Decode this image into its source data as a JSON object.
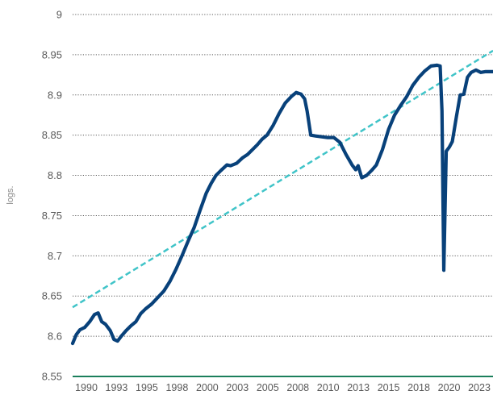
{
  "chart_data": {
    "type": "line",
    "ylabel": "logs.",
    "ylim": [
      8.55,
      9.0
    ],
    "xlim": [
      1990,
      2024.6
    ],
    "grid": true,
    "y_ticks": [
      "9",
      "8.95",
      "8.9",
      "8.85",
      "8.8",
      "8.75",
      "8.7",
      "8.65",
      "8.6",
      "8.55"
    ],
    "x_ticks": [
      "1990",
      "1993",
      "1995",
      "1998",
      "2000",
      "2003",
      "2005",
      "2008",
      "2010",
      "2013",
      "2015",
      "2018",
      "2020",
      "2023"
    ],
    "series": [
      {
        "color": "#08417a",
        "style": "solid",
        "x": [
          1990.0,
          1990.3,
          1990.6,
          1991.0,
          1991.4,
          1991.8,
          1992.1,
          1992.4,
          1992.7,
          1993.1,
          1993.4,
          1993.7,
          1994.0,
          1994.4,
          1994.8,
          1995.2,
          1995.6,
          1996.0,
          1996.5,
          1997.0,
          1997.5,
          1998.0,
          1998.5,
          1999.0,
          1999.5,
          2000.0,
          2000.5,
          2001.0,
          2001.4,
          2001.8,
          2002.2,
          2002.7,
          2003.0,
          2003.5,
          2004.0,
          2004.4,
          2004.8,
          2005.2,
          2005.6,
          2006.0,
          2006.5,
          2007.0,
          2007.5,
          2008.0,
          2008.4,
          2008.8,
          2009.1,
          2009.3,
          2009.6,
          2010.0,
          2010.5,
          2011.0,
          2011.5,
          2012.0,
          2012.5,
          2013.0,
          2013.3,
          2013.5,
          2013.8,
          2014.2,
          2014.6,
          2015.0,
          2015.5,
          2016.0,
          2016.5,
          2017.0,
          2017.5,
          2018.0,
          2018.5,
          2019.0,
          2019.5,
          2020.0,
          2020.25,
          2020.4,
          2020.55,
          2020.75,
          2021.0,
          2021.25,
          2021.6,
          2021.9,
          2022.2,
          2022.5,
          2022.8,
          2023.2,
          2023.6,
          2024.0,
          2024.6
        ],
        "values": [
          8.591,
          8.602,
          8.608,
          8.611,
          8.618,
          8.627,
          8.629,
          8.618,
          8.615,
          8.607,
          8.596,
          8.594,
          8.6,
          8.607,
          8.613,
          8.618,
          8.628,
          8.634,
          8.64,
          8.648,
          8.656,
          8.668,
          8.683,
          8.7,
          8.718,
          8.735,
          8.757,
          8.778,
          8.79,
          8.8,
          8.806,
          8.813,
          8.812,
          8.815,
          8.822,
          8.826,
          8.832,
          8.838,
          8.845,
          8.85,
          8.862,
          8.877,
          8.89,
          8.898,
          8.903,
          8.901,
          8.895,
          8.88,
          8.85,
          8.849,
          8.848,
          8.847,
          8.847,
          8.841,
          8.826,
          8.813,
          8.807,
          8.812,
          8.797,
          8.8,
          8.806,
          8.813,
          8.832,
          8.857,
          8.875,
          8.887,
          8.898,
          8.912,
          8.922,
          8.93,
          8.936,
          8.937,
          8.936,
          8.88,
          8.682,
          8.83,
          8.835,
          8.842,
          8.874,
          8.9,
          8.901,
          8.922,
          8.928,
          8.931,
          8.928,
          8.929,
          8.929
        ]
      },
      {
        "color": "#40c4c8",
        "style": "dashed",
        "x": [
          1990.0,
          2024.6
        ],
        "values": [
          8.636,
          8.955
        ]
      }
    ]
  }
}
